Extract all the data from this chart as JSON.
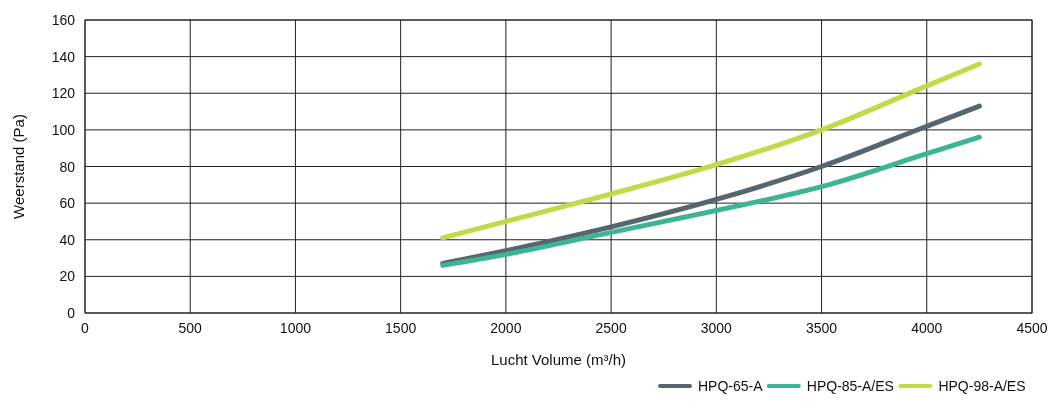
{
  "chart_data": {
    "type": "line",
    "xlabel": "Lucht Volume (m³/h)",
    "ylabel": "Weerstand (Pa)",
    "xlim": [
      0,
      4500
    ],
    "xticks": [
      0,
      500,
      1000,
      1500,
      2000,
      2500,
      3000,
      3500,
      4000,
      4500
    ],
    "ylim": [
      0,
      160
    ],
    "yticks": [
      0,
      20,
      40,
      60,
      80,
      100,
      120,
      140,
      160
    ],
    "grid": true,
    "legend": "bottom right",
    "x": [
      1700,
      2000,
      2500,
      3000,
      3500,
      4000,
      4250
    ],
    "series": [
      {
        "name": "HPQ-65-A",
        "color": "#56666f",
        "values": [
          27,
          34,
          47,
          62,
          80,
          102,
          113
        ]
      },
      {
        "name": "HPQ-85-A/ES",
        "color": "#3db593",
        "values": [
          26,
          32,
          44,
          56,
          69,
          87,
          96
        ]
      },
      {
        "name": "HPQ-98-A/ES",
        "color": "#c5d84a",
        "values": [
          41,
          50,
          65,
          81,
          100,
          124,
          136
        ]
      }
    ]
  }
}
